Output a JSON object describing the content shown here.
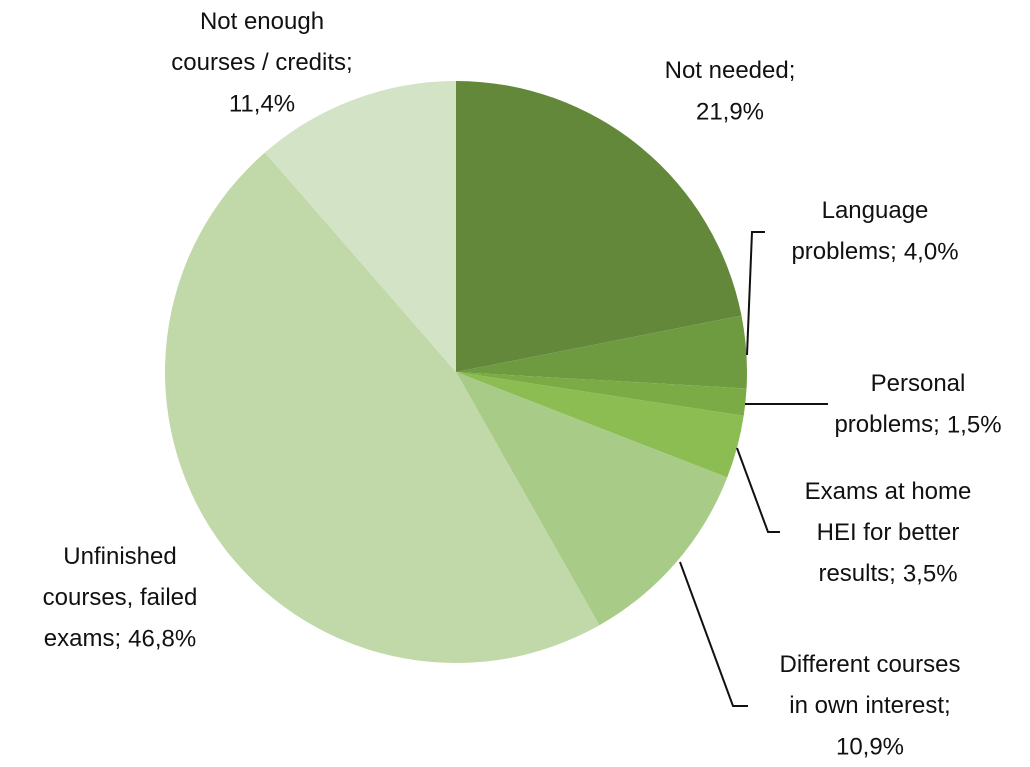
{
  "chart_data": {
    "type": "pie",
    "categories": [
      "Not needed;",
      "Language problems;",
      "Personal problems;",
      "Exams at home HEI for better results;",
      "Different courses in own interest;",
      "Unfinished courses, failed exams;",
      "Not enough courses / credits;"
    ],
    "values": [
      21.9,
      4.0,
      1.5,
      3.5,
      10.9,
      46.8,
      11.4
    ],
    "value_labels": [
      "21,9%",
      "4,0%",
      "1,5%",
      "3,5%",
      "10,9%",
      "46,8%",
      "11,4%"
    ],
    "colors": [
      "#64883a",
      "#6e9b3f",
      "#7aab44",
      "#8bbd52",
      "#a8cc88",
      "#c1d8a9",
      "#d3e3c5"
    ]
  }
}
